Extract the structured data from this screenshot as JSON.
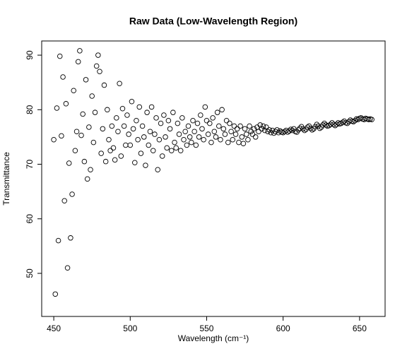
{
  "chart_data": {
    "type": "scatter",
    "title": "Raw Data (Low-Wavelength Region)",
    "x_label": "Wavelength (cm⁻¹)",
    "y_label": "Transmittance",
    "color": "#000000",
    "xlim": [
      442.1,
      666.7
    ],
    "ylim": [
      42.1,
      92.6
    ],
    "xticks": [
      450,
      500,
      550,
      600,
      650
    ],
    "yticks": [
      50,
      60,
      70,
      80,
      90
    ],
    "series": [
      {
        "x": [
          450,
          451,
          452,
          453,
          454,
          455,
          456,
          457,
          458,
          459,
          460,
          461,
          462,
          463,
          464,
          465,
          466,
          467,
          468,
          469,
          470,
          471,
          472,
          473,
          474,
          475,
          476,
          477,
          478,
          479,
          480,
          481,
          482,
          483,
          484,
          485,
          486,
          487,
          488,
          489,
          490,
          491,
          492,
          493,
          494,
          495,
          496,
          497,
          498,
          499,
          500,
          501,
          502,
          503,
          504,
          505,
          506,
          507,
          508,
          509,
          510,
          511,
          512,
          513,
          514,
          515,
          516,
          517,
          518,
          519,
          520,
          521,
          522,
          523,
          524,
          525,
          526,
          527,
          528,
          529,
          530,
          531,
          532,
          533,
          534,
          535,
          536,
          537,
          538,
          539,
          540,
          541,
          542,
          543,
          544,
          545,
          546,
          547,
          548,
          549,
          550,
          551,
          552,
          553,
          554,
          555,
          556,
          557,
          558,
          559,
          560,
          561,
          562,
          563,
          564,
          565,
          566,
          567,
          568,
          569,
          570,
          571,
          572,
          573,
          574,
          575,
          576,
          577,
          578,
          579,
          580,
          581,
          582,
          583,
          584,
          585,
          586,
          587,
          588,
          589,
          590,
          591,
          592,
          593,
          594,
          595,
          596,
          597,
          598,
          599,
          600,
          601,
          602,
          603,
          604,
          605,
          606,
          607,
          608,
          609,
          610,
          611,
          612,
          613,
          614,
          615,
          616,
          617,
          618,
          619,
          620,
          621,
          622,
          623,
          624,
          625,
          626,
          627,
          628,
          629,
          630,
          631,
          632,
          633,
          634,
          635,
          636,
          637,
          638,
          639,
          640,
          641,
          642,
          643,
          644,
          645,
          646,
          647,
          648,
          649,
          650,
          651,
          652,
          653,
          654,
          655,
          656,
          657,
          658
        ],
        "values": [
          74.5,
          46.2,
          80.3,
          56.0,
          89.8,
          75.2,
          86.0,
          63.3,
          81.1,
          51.0,
          70.2,
          56.5,
          64.5,
          83.5,
          72.5,
          76.0,
          88.8,
          90.8,
          75.3,
          79.2,
          70.5,
          85.5,
          67.3,
          76.8,
          69.0,
          82.5,
          74.0,
          79.5,
          88.0,
          90.0,
          87.0,
          72.0,
          76.5,
          84.5,
          70.5,
          80.0,
          74.5,
          72.5,
          77.0,
          73.0,
          70.8,
          78.5,
          76.0,
          84.8,
          71.5,
          80.2,
          77.0,
          73.5,
          79.0,
          75.5,
          73.5,
          81.5,
          76.5,
          70.3,
          78.0,
          74.5,
          80.5,
          72.0,
          77.0,
          75.0,
          69.8,
          79.5,
          73.5,
          76.0,
          80.5,
          72.5,
          75.5,
          78.5,
          69.0,
          74.5,
          77.5,
          71.5,
          79.0,
          75.0,
          73.0,
          78.0,
          76.5,
          72.5,
          79.5,
          74.0,
          73.0,
          77.5,
          75.5,
          72.5,
          78.5,
          74.5,
          76.0,
          73.5,
          77.0,
          75.0,
          74.0,
          78.0,
          76.0,
          73.5,
          77.5,
          75.0,
          79.0,
          76.5,
          74.5,
          80.5,
          78.0,
          75.5,
          77.5,
          74.0,
          78.5,
          76.0,
          75.0,
          79.5,
          77.0,
          74.5,
          80.0,
          76.5,
          75.5,
          78.0,
          74.0,
          77.5,
          76.0,
          74.5,
          77.0,
          75.5,
          76.5,
          74.0,
          77.0,
          75.0,
          73.8,
          76.5,
          75.5,
          74.5,
          77.0,
          76.0,
          75.5,
          76.5,
          75.0,
          76.8,
          76.0,
          77.2,
          76.5,
          77.0,
          76.2,
          76.8,
          76.0,
          76.3,
          75.8,
          76.2,
          75.7,
          76.0,
          76.3,
          75.8,
          76.1,
          75.9,
          75.8,
          76.0,
          76.2,
          75.9,
          76.1,
          76.4,
          76.2,
          76.5,
          76.0,
          75.9,
          76.3,
          76.6,
          76.9,
          76.5,
          76.2,
          76.4,
          76.8,
          77.0,
          76.6,
          76.3,
          76.5,
          76.9,
          77.3,
          77.0,
          76.6,
          76.8,
          77.2,
          77.5,
          77.2,
          77.0,
          77.1,
          77.3,
          77.6,
          77.3,
          77.1,
          77.3,
          77.6,
          77.4,
          77.5,
          77.7,
          77.9,
          77.6,
          77.5,
          77.8,
          78.1,
          77.9,
          77.8,
          78.0,
          78.3,
          78.2,
          78.4,
          78.5,
          78.3,
          78.2,
          78.4,
          78.3,
          78.2,
          78.3,
          78.2
        ]
      }
    ]
  }
}
